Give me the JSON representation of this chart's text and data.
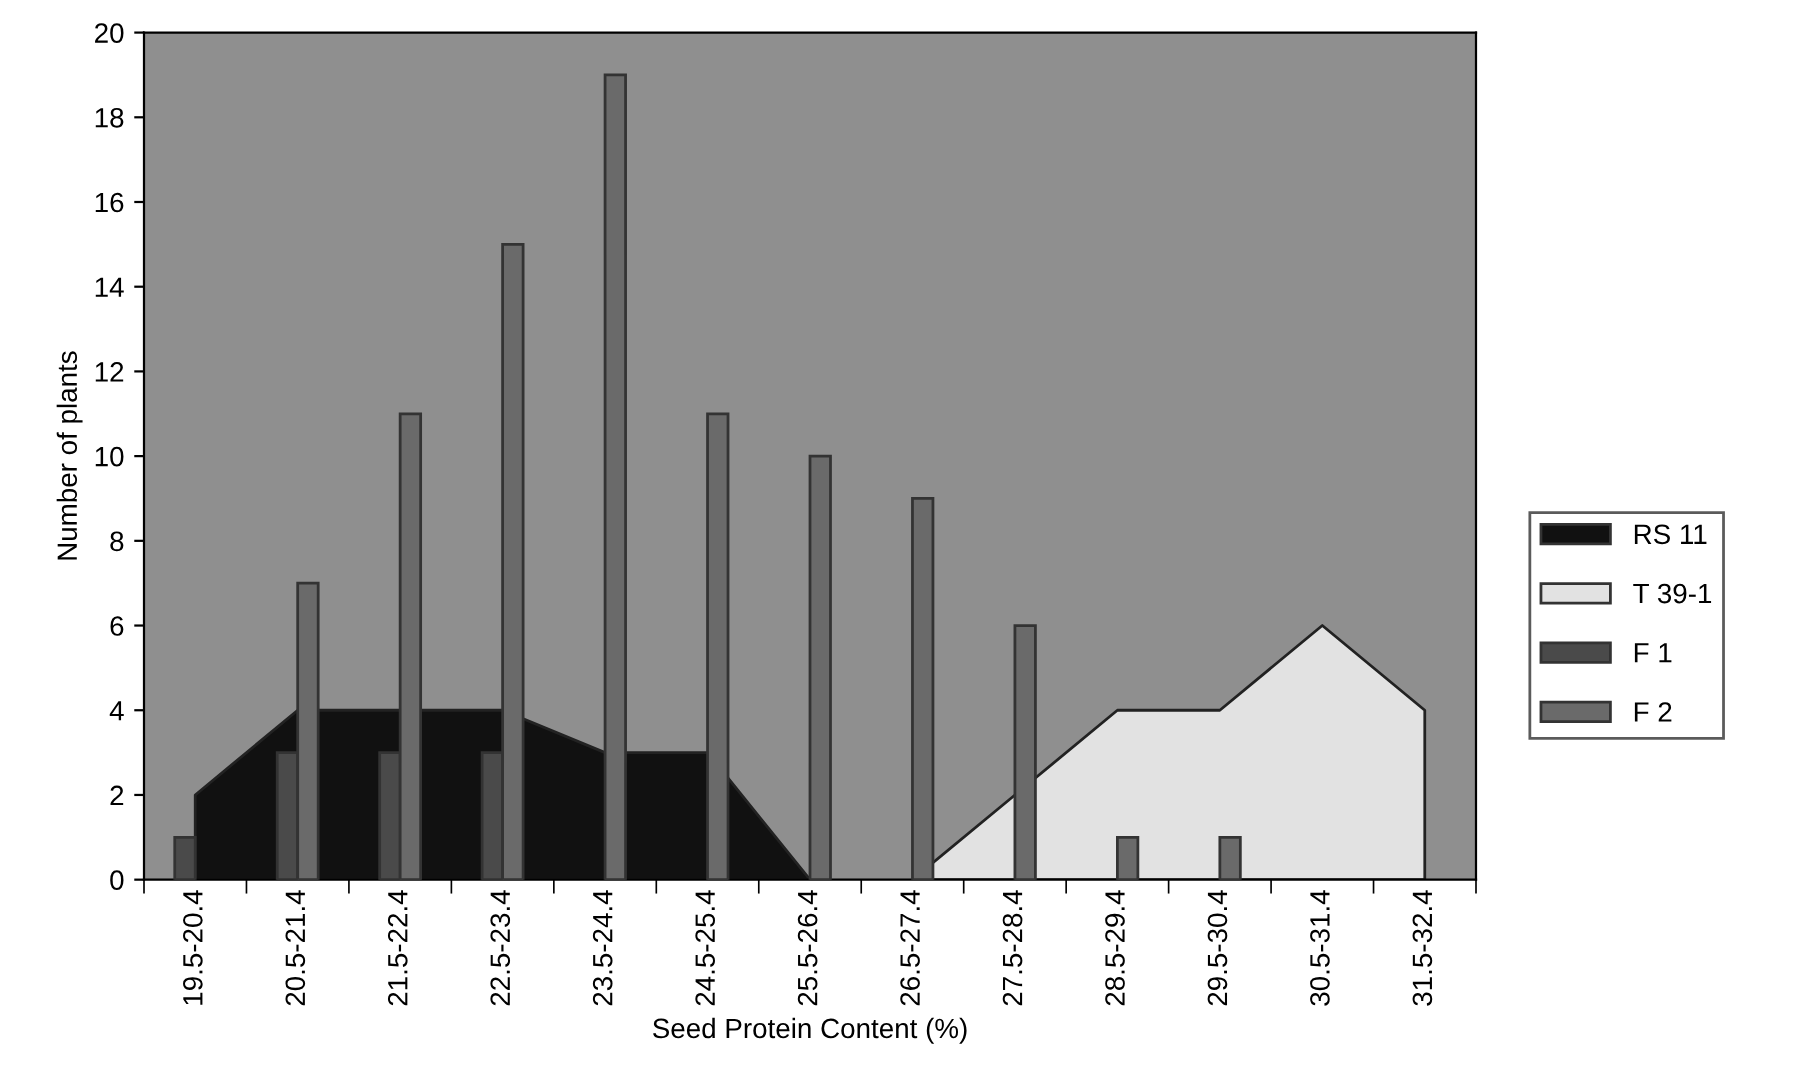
{
  "chart_data": {
    "type": "bar",
    "xlabel": "Seed Protein Content (%)",
    "ylabel": "Number of plants",
    "categories": [
      "19.5-20.4",
      "20.5-21.4",
      "21.5-22.4",
      "22.5-23.4",
      "23.5-24.4",
      "24.5-25.4",
      "25.5-26.4",
      "26.5-27.4",
      "27.5-28.4",
      "28.5-29.4",
      "29.5-30.4",
      "30.5-31.4",
      "31.5-32.4"
    ],
    "series": [
      {
        "name": "RS 11",
        "type": "area",
        "color": "#111111",
        "values": [
          2,
          4,
          4,
          4,
          3,
          3,
          0,
          null,
          null,
          null,
          null,
          null,
          null
        ]
      },
      {
        "name": "T 39-1",
        "type": "area",
        "color": "#e2e2e2",
        "values": [
          null,
          null,
          null,
          null,
          null,
          null,
          null,
          0,
          2,
          4,
          4,
          6,
          4
        ]
      },
      {
        "name": "F 1",
        "color": "#4a4a4a",
        "values": [
          1,
          3,
          3,
          3,
          null,
          null,
          null,
          null,
          null,
          null,
          null,
          null,
          null
        ]
      },
      {
        "name": "F 2",
        "color": "#6a6a6a",
        "values": [
          null,
          7,
          11,
          15,
          19,
          11,
          10,
          9,
          6,
          1,
          1,
          null,
          null
        ]
      }
    ],
    "ylim": [
      0,
      20
    ],
    "yticks": [
      0,
      2,
      4,
      6,
      8,
      10,
      12,
      14,
      16,
      18,
      20
    ],
    "grid": false,
    "legend": "right"
  }
}
